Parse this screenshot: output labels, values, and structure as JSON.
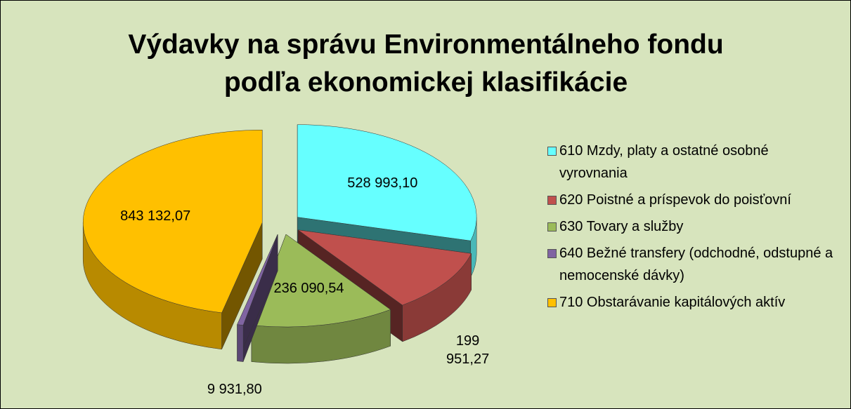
{
  "chart_data": {
    "type": "pie3d",
    "title": "Výdavky na správu Environmentálneho fondu podľa ekonomickej klasifikácie",
    "categories": [
      "610 Mzdy, platy a ostatné osobné vyrovnania",
      "620 Poistné a príspevok do poisťovní",
      "630 Tovary a služby",
      "640 Bežné transfery (odchodné, odstupné a nemocenské dávky)",
      "710 Obstarávanie kapitálových aktív"
    ],
    "values": [
      528993.1,
      199951.27,
      236090.54,
      9931.8,
      843132.07
    ],
    "value_labels": [
      "528 993,10",
      "199 951,27",
      "236 090,54",
      "9 931,80",
      "843 132,07"
    ],
    "colors": [
      "#66ffff",
      "#c0504d",
      "#9bbb59",
      "#8064a2",
      "#ffc000"
    ],
    "legend": "right"
  }
}
